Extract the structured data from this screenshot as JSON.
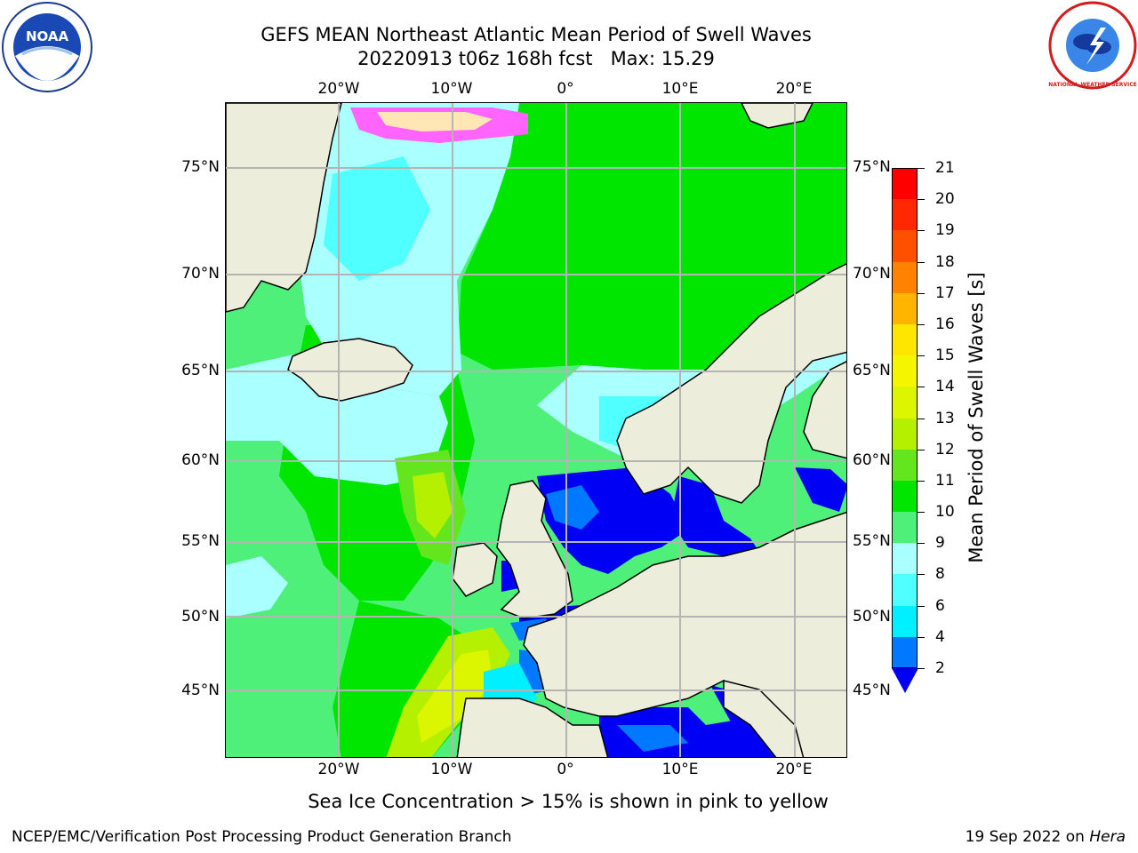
{
  "header": {
    "title_line1": "GEFS MEAN Northeast Atlantic Mean Period of Swell Waves",
    "title_line2": "20220913 t06z 168h fcst   Max: 15.29"
  },
  "logos": {
    "left": {
      "icon": "noaa-logo",
      "text": "NOAA"
    },
    "right": {
      "icon": "national-weather-service-logo",
      "text": "NATIONAL WEATHER SERVICE"
    }
  },
  "map": {
    "longitude_ticks": [
      "20°W",
      "10°W",
      "0°",
      "10°E",
      "20°E"
    ],
    "latitude_ticks": [
      "75°N",
      "70°N",
      "65°N",
      "60°N",
      "55°N",
      "50°N",
      "45°N"
    ],
    "colors": {
      "land": "#ededdc",
      "ocean_base": "#4ff07a",
      "coastline": "#000000",
      "gridline": "#b4b4b4"
    }
  },
  "colorbar": {
    "title": "Mean Period of Swell Waves [s]",
    "tick_labels": [
      "21",
      "20",
      "19",
      "18",
      "17",
      "16",
      "15",
      "14",
      "13",
      "12",
      "11",
      "10",
      "9",
      "8",
      "6",
      "4",
      "2"
    ],
    "segments": [
      {
        "from": 20,
        "to": 21,
        "color": "#ff0000"
      },
      {
        "from": 19,
        "to": 20,
        "color": "#ff2800"
      },
      {
        "from": 18,
        "to": 19,
        "color": "#ff5000"
      },
      {
        "from": 17,
        "to": 18,
        "color": "#ff8200"
      },
      {
        "from": 16,
        "to": 17,
        "color": "#ffb400"
      },
      {
        "from": 15,
        "to": 16,
        "color": "#ffe600"
      },
      {
        "from": 14,
        "to": 15,
        "color": "#f5f500"
      },
      {
        "from": 13,
        "to": 14,
        "color": "#dcf500"
      },
      {
        "from": 12,
        "to": 13,
        "color": "#b4f000"
      },
      {
        "from": 11,
        "to": 12,
        "color": "#64e61e"
      },
      {
        "from": 10,
        "to": 11,
        "color": "#00e600"
      },
      {
        "from": 9,
        "to": 10,
        "color": "#4ff07a"
      },
      {
        "from": 8,
        "to": 9,
        "color": "#aaffff"
      },
      {
        "from": 6,
        "to": 8,
        "color": "#50ffff"
      },
      {
        "from": 4,
        "to": 6,
        "color": "#00f0ff"
      },
      {
        "from": 2,
        "to": 4,
        "color": "#0078ff"
      }
    ],
    "under_color": "#0000f5"
  },
  "notes": {
    "sea_ice": "Sea Ice Concentration > 15% is shown in pink to yellow"
  },
  "footer": {
    "left": "NCEP/EMC/Verification Post Processing Product Generation Branch",
    "date": "19 Sep 2022 on ",
    "host": "Hera"
  }
}
